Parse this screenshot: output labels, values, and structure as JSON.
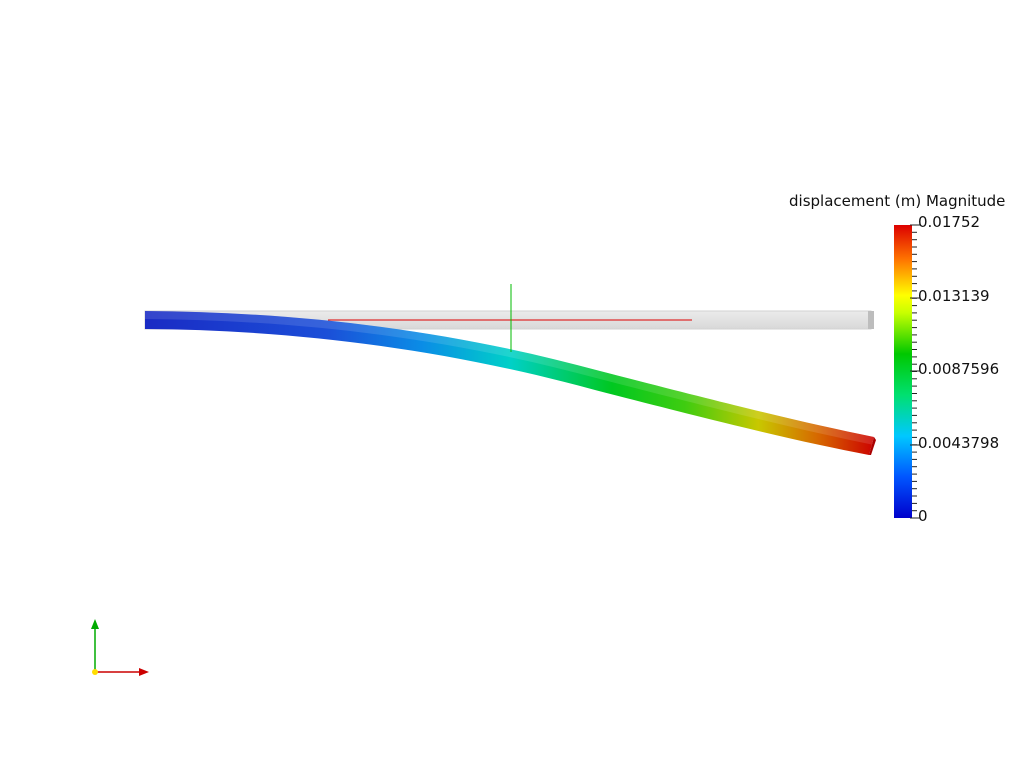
{
  "colorbar": {
    "title": "displacement (m) Magnitude",
    "max_label": "0.01752",
    "tick_2": "0.013139",
    "tick_3": "0.0087596",
    "tick_4": "0.0043798",
    "min_label": "0",
    "min": 0,
    "max": 0.01752,
    "colormap": [
      "#0000cc",
      "#0055ff",
      "#00c8ff",
      "#00e070",
      "#00c800",
      "#ffff00",
      "#ff7700",
      "#dd0000"
    ]
  },
  "beam": {
    "undeformed_color": "#e0e0e0",
    "deformed_start_color": "#0000cc",
    "deformed_end_color": "#cc0000"
  },
  "axes": {
    "x_color": "#cc0000",
    "y_color": "#00b000",
    "origin_color": "#ffdd00"
  },
  "center_axes": {
    "x_color": "#cc0000",
    "y_color": "#00b000"
  }
}
